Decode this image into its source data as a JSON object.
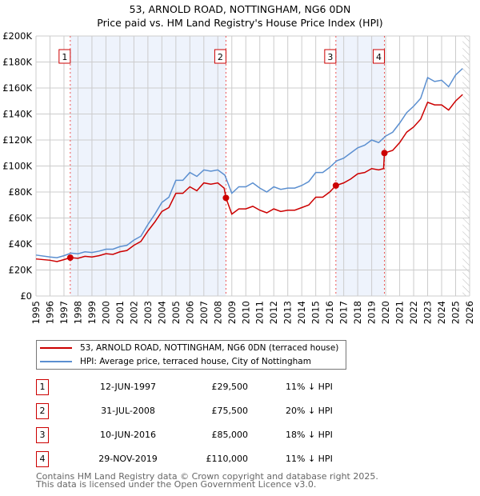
{
  "title": "53, ARNOLD ROAD, NOTTINGHAM, NG6 0DN",
  "subtitle": "Price paid vs. HM Land Registry's House Price Index (HPI)",
  "chart_data": {
    "type": "line",
    "xlim": [
      1995,
      2026
    ],
    "ylim": [
      0,
      200000
    ],
    "x_ticks": [
      "1995",
      "1996",
      "1997",
      "1998",
      "1999",
      "2000",
      "2001",
      "2002",
      "2003",
      "2004",
      "2005",
      "2006",
      "2007",
      "2008",
      "2009",
      "2010",
      "2011",
      "2012",
      "2013",
      "2014",
      "2015",
      "2016",
      "2017",
      "2018",
      "2019",
      "2020",
      "2021",
      "2022",
      "2023",
      "2024",
      "2025",
      "2026"
    ],
    "y_ticks": [
      {
        "v": 0,
        "l": "£0"
      },
      {
        "v": 20000,
        "l": "£20K"
      },
      {
        "v": 40000,
        "l": "£40K"
      },
      {
        "v": 60000,
        "l": "£60K"
      },
      {
        "v": 80000,
        "l": "£80K"
      },
      {
        "v": 100000,
        "l": "£100K"
      },
      {
        "v": 120000,
        "l": "£120K"
      },
      {
        "v": 140000,
        "l": "£140K"
      },
      {
        "v": 160000,
        "l": "£160K"
      },
      {
        "v": 180000,
        "l": "£180K"
      },
      {
        "v": 200000,
        "l": "£200K"
      }
    ],
    "grid": true,
    "series": [
      {
        "name": "53, ARNOLD ROAD, NOTTINGHAM, NG6 0DN (terraced house)",
        "color": "#cc0000",
        "x": [
          1995,
          1996,
          1996.5,
          1997,
          1997.45,
          1998,
          1998.5,
          1999,
          1999.5,
          2000,
          2000.5,
          2001,
          2001.5,
          2002,
          2002.5,
          2003,
          2003.5,
          2004,
          2004.5,
          2005,
          2005.5,
          2006,
          2006.5,
          2007,
          2007.5,
          2008,
          2008.45,
          2008.58,
          2009,
          2009.5,
          2010,
          2010.5,
          2011,
          2011.5,
          2012,
          2012.5,
          2013,
          2013.5,
          2014,
          2014.5,
          2015,
          2015.5,
          2016,
          2016.44,
          2017,
          2017.5,
          2018,
          2018.5,
          2019,
          2019.5,
          2019.85,
          2019.91,
          2020.5,
          2021,
          2021.5,
          2022,
          2022.5,
          2023,
          2023.5,
          2024,
          2024.5,
          2025,
          2025.5
        ],
        "y": [
          28500,
          27500,
          26500,
          28000,
          29500,
          29000,
          30500,
          30000,
          31000,
          32500,
          32000,
          34000,
          35000,
          39000,
          42000,
          50000,
          57000,
          65000,
          68000,
          79000,
          79000,
          84000,
          81000,
          87000,
          86000,
          87000,
          83000,
          75500,
          63000,
          67000,
          67000,
          69000,
          66000,
          64000,
          67000,
          65000,
          66000,
          66000,
          68000,
          70000,
          76000,
          76000,
          80000,
          85000,
          87000,
          90000,
          94000,
          95000,
          98000,
          97000,
          98000,
          110000,
          112000,
          118000,
          126000,
          130000,
          136000,
          149000,
          147000,
          147000,
          143000,
          150000,
          155000
        ]
      },
      {
        "name": "HPI: Average price, terraced house, City of Nottingham",
        "color": "#5b8fd0",
        "x": [
          1995,
          1996,
          1996.5,
          1997,
          1997.5,
          1998,
          1998.5,
          1999,
          1999.5,
          2000,
          2000.5,
          2001,
          2001.5,
          2002,
          2002.5,
          2003,
          2003.5,
          2004,
          2004.5,
          2005,
          2005.5,
          2006,
          2006.5,
          2007,
          2007.5,
          2008,
          2008.5,
          2009,
          2009.5,
          2010,
          2010.5,
          2011,
          2011.5,
          2012,
          2012.5,
          2013,
          2013.5,
          2014,
          2014.5,
          2015,
          2015.5,
          2016,
          2016.5,
          2017,
          2017.5,
          2018,
          2018.5,
          2019,
          2019.5,
          2020,
          2020.5,
          2021,
          2021.5,
          2022,
          2022.5,
          2023,
          2023.5,
          2024,
          2024.5,
          2025,
          2025.5
        ],
        "y": [
          31500,
          30000,
          29500,
          31000,
          33000,
          32500,
          34000,
          33500,
          34500,
          36000,
          36000,
          38000,
          39000,
          43000,
          46000,
          55000,
          63000,
          72000,
          76000,
          89000,
          89000,
          95000,
          92000,
          97000,
          96000,
          97000,
          93000,
          79000,
          84000,
          84000,
          87000,
          83000,
          80000,
          84000,
          82000,
          83000,
          83000,
          85000,
          88000,
          95000,
          95000,
          99000,
          104000,
          106000,
          110000,
          114000,
          116000,
          120000,
          118000,
          123000,
          126000,
          133000,
          141000,
          146000,
          152000,
          168000,
          165000,
          166000,
          161000,
          170000,
          175000
        ]
      }
    ],
    "sales": [
      {
        "id": "1",
        "x": 1997.45,
        "y": 29500
      },
      {
        "id": "2",
        "x": 2008.58,
        "y": 75500
      },
      {
        "id": "3",
        "x": 2016.44,
        "y": 85000
      },
      {
        "id": "4",
        "x": 2019.91,
        "y": 110000
      }
    ],
    "shaded_ranges": [
      [
        1997.45,
        2008.58
      ],
      [
        2016.44,
        2019.91
      ]
    ],
    "forecast_from": 2025.5
  },
  "legend": [
    {
      "label": "53, ARNOLD ROAD, NOTTINGHAM, NG6 0DN (terraced house)",
      "color": "#cc0000"
    },
    {
      "label": "HPI: Average price, terraced house, City of Nottingham",
      "color": "#5b8fd0"
    }
  ],
  "transactions": [
    {
      "num": "1",
      "date": "12-JUN-1997",
      "price": "£29,500",
      "hpi": "11% ↓ HPI"
    },
    {
      "num": "2",
      "date": "31-JUL-2008",
      "price": "£75,500",
      "hpi": "20% ↓ HPI"
    },
    {
      "num": "3",
      "date": "10-JUN-2016",
      "price": "£85,000",
      "hpi": "18% ↓ HPI"
    },
    {
      "num": "4",
      "date": "29-NOV-2019",
      "price": "£110,000",
      "hpi": "11% ↓ HPI"
    }
  ],
  "footer": [
    "Contains HM Land Registry data © Crown copyright and database right 2025.",
    "This data is licensed under the Open Government Licence v3.0."
  ]
}
